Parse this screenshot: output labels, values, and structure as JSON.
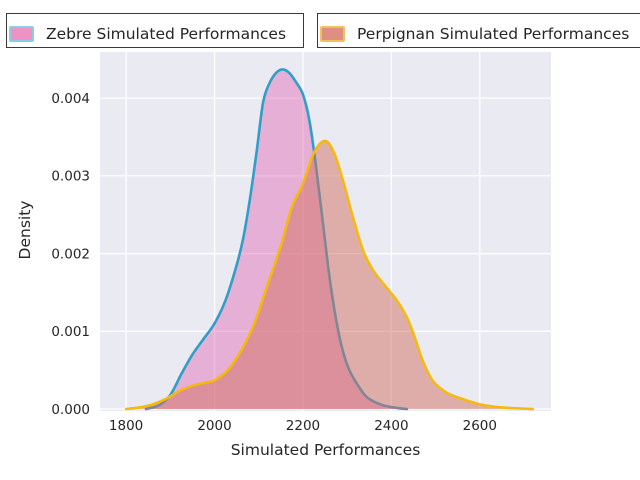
{
  "legend": {
    "items": [
      {
        "label": "Zebre Simulated Performances",
        "swatch_fill": "#EE92C3",
        "swatch_edge": "#8CCDE6"
      },
      {
        "label": "Perpignan Simulated Performances",
        "swatch_fill": "#DF8E82",
        "swatch_edge": "#F0C25E"
      }
    ]
  },
  "chart_data": {
    "type": "area",
    "subtype": "kde-density",
    "title": "",
    "xlabel": "Simulated Performances",
    "ylabel": "Density",
    "xlim": [
      1741,
      2761
    ],
    "ylim": [
      0,
      0.004594
    ],
    "x_ticks": [
      1800,
      2000,
      2200,
      2400,
      2600
    ],
    "x_tick_labels": [
      "1800",
      "2000",
      "2200",
      "2400",
      "2600"
    ],
    "y_ticks": [
      0,
      0.001,
      0.002,
      0.003,
      0.004
    ],
    "y_tick_labels": [
      "0.000",
      "0.001",
      "0.002",
      "0.003",
      "0.004"
    ],
    "grid": true,
    "axes_background": "#EAEAF2",
    "grid_color": "#FFFFFF",
    "tick_label_color": "#262626",
    "legend_position": "top",
    "series": [
      {
        "name": "Zebre Simulated Performances",
        "line_color": "#2E9FC9",
        "fill_color": "#E36BB4",
        "fill_alpha": 0.45,
        "peak": {
          "x": 2155,
          "density": 0.00437
        },
        "points": [
          [
            1845,
            0
          ],
          [
            1875,
            5e-05
          ],
          [
            1900,
            0.00018
          ],
          [
            1925,
            0.00045
          ],
          [
            1950,
            0.0007
          ],
          [
            1975,
            0.0009
          ],
          [
            2000,
            0.0011
          ],
          [
            2025,
            0.0014
          ],
          [
            2050,
            0.00185
          ],
          [
            2065,
            0.0022
          ],
          [
            2080,
            0.0027
          ],
          [
            2095,
            0.0033
          ],
          [
            2110,
            0.00395
          ],
          [
            2125,
            0.0042
          ],
          [
            2140,
            0.00433
          ],
          [
            2155,
            0.00437
          ],
          [
            2170,
            0.00432
          ],
          [
            2185,
            0.0042
          ],
          [
            2200,
            0.00405
          ],
          [
            2215,
            0.0037
          ],
          [
            2230,
            0.0031
          ],
          [
            2245,
            0.0024
          ],
          [
            2260,
            0.0017
          ],
          [
            2275,
            0.00115
          ],
          [
            2290,
            0.00075
          ],
          [
            2305,
            0.0005
          ],
          [
            2325,
            0.0003
          ],
          [
            2345,
            0.00015
          ],
          [
            2375,
            6e-05
          ],
          [
            2405,
            2e-05
          ],
          [
            2435,
            0
          ]
        ]
      },
      {
        "name": "Perpignan Simulated Performances",
        "line_color": "#F5BA0B",
        "fill_color": "#D26F5F",
        "fill_alpha": 0.5,
        "peak": {
          "x": 2250,
          "density": 0.00345
        },
        "points": [
          [
            1800,
            0
          ],
          [
            1830,
            2e-05
          ],
          [
            1860,
            6e-05
          ],
          [
            1890,
            0.00013
          ],
          [
            1920,
            0.00023
          ],
          [
            1950,
            0.0003
          ],
          [
            1980,
            0.00034
          ],
          [
            2000,
            0.00037
          ],
          [
            2030,
            0.0005
          ],
          [
            2060,
            0.00075
          ],
          [
            2090,
            0.0011
          ],
          [
            2120,
            0.0016
          ],
          [
            2150,
            0.0021
          ],
          [
            2175,
            0.0026
          ],
          [
            2200,
            0.0029
          ],
          [
            2225,
            0.0033
          ],
          [
            2250,
            0.00345
          ],
          [
            2270,
            0.0033
          ],
          [
            2290,
            0.00295
          ],
          [
            2313,
            0.00247
          ],
          [
            2336,
            0.00204
          ],
          [
            2358,
            0.00179
          ],
          [
            2385,
            0.00159
          ],
          [
            2412,
            0.0014
          ],
          [
            2435,
            0.00118
          ],
          [
            2453,
            0.00092
          ],
          [
            2471,
            0.00062
          ],
          [
            2494,
            0.00036
          ],
          [
            2525,
            0.00021
          ],
          [
            2555,
            0.00014
          ],
          [
            2600,
            6e-05
          ],
          [
            2650,
            2e-05
          ],
          [
            2720,
            0
          ]
        ]
      }
    ]
  }
}
